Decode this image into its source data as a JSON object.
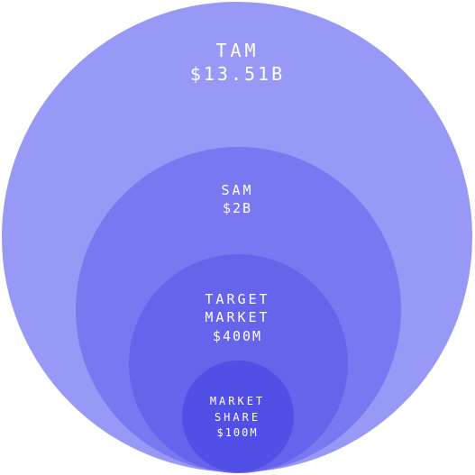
{
  "colors": {
    "tam": "#9898f6",
    "sam": "#7a78f0",
    "target_market": "#6664ea",
    "market_share": "#524fe6",
    "text": "#ffffff"
  },
  "tam": {
    "name": "TAM",
    "value": "$13.51B"
  },
  "sam": {
    "name": "SAM",
    "value": "$2B"
  },
  "target_market": {
    "name_line1": "TARGET",
    "name_line2": "MARKET",
    "value": "$400M"
  },
  "market_share": {
    "name_line1": "MARKET",
    "name_line2": "SHARE",
    "value": "$100M"
  }
}
